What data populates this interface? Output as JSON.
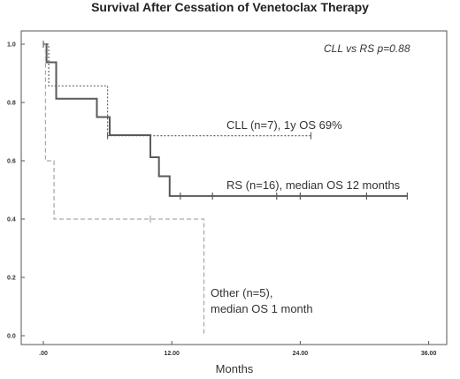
{
  "chart_data": {
    "type": "line",
    "title": "Survival After Cessation of Venetoclax Therapy",
    "xlabel": "Months",
    "ylabel": "",
    "xlim": [
      -1.5,
      36
    ],
    "ylim": [
      -0.02,
      1.08
    ],
    "x_ticks": [
      ".00",
      "12.00",
      "24.00",
      "36.00"
    ],
    "y_ticks": [
      "0.0",
      "0.2",
      "0.4",
      "0.6",
      "0.8",
      "1.0"
    ],
    "annotation": "CLL vs RS p=0.88",
    "series": [
      {
        "name": "CLL",
        "label": "CLL (n=7), 1y OS 69%",
        "color": "#666666",
        "style": "dotted",
        "steps": [
          [
            0,
            1.0
          ],
          [
            0.5,
            0.857
          ],
          [
            6.0,
            0.686
          ],
          [
            25.0,
            0.686
          ]
        ],
        "censored": [
          [
            6.0,
            0.686
          ],
          [
            25.0,
            0.686
          ]
        ]
      },
      {
        "name": "RS",
        "label": "RS (n=16), median OS 12 months",
        "color": "#5a5a5a",
        "style": "solid",
        "steps": [
          [
            0,
            1.0
          ],
          [
            0.3,
            0.938
          ],
          [
            1.2,
            0.813
          ],
          [
            5.0,
            0.75
          ],
          [
            6.2,
            0.688
          ],
          [
            10.0,
            0.612
          ],
          [
            10.8,
            0.547
          ],
          [
            11.8,
            0.479
          ],
          [
            34.0,
            0.479
          ]
        ],
        "censored": [
          [
            12.8,
            0.479
          ],
          [
            15.8,
            0.479
          ],
          [
            21.8,
            0.479
          ],
          [
            24.0,
            0.479
          ],
          [
            30.2,
            0.479
          ],
          [
            34.0,
            0.479
          ]
        ]
      },
      {
        "name": "Other",
        "label": [
          "Other (n=5),",
          "median OS 1 month"
        ],
        "color": "#aaaaaa",
        "style": "dashed",
        "steps": [
          [
            0,
            1.0
          ],
          [
            0.2,
            0.6
          ],
          [
            1.0,
            0.4
          ],
          [
            15.0,
            0.4
          ],
          [
            15.0,
            0.0
          ]
        ],
        "censored": [
          [
            10.0,
            0.4
          ]
        ]
      }
    ]
  }
}
